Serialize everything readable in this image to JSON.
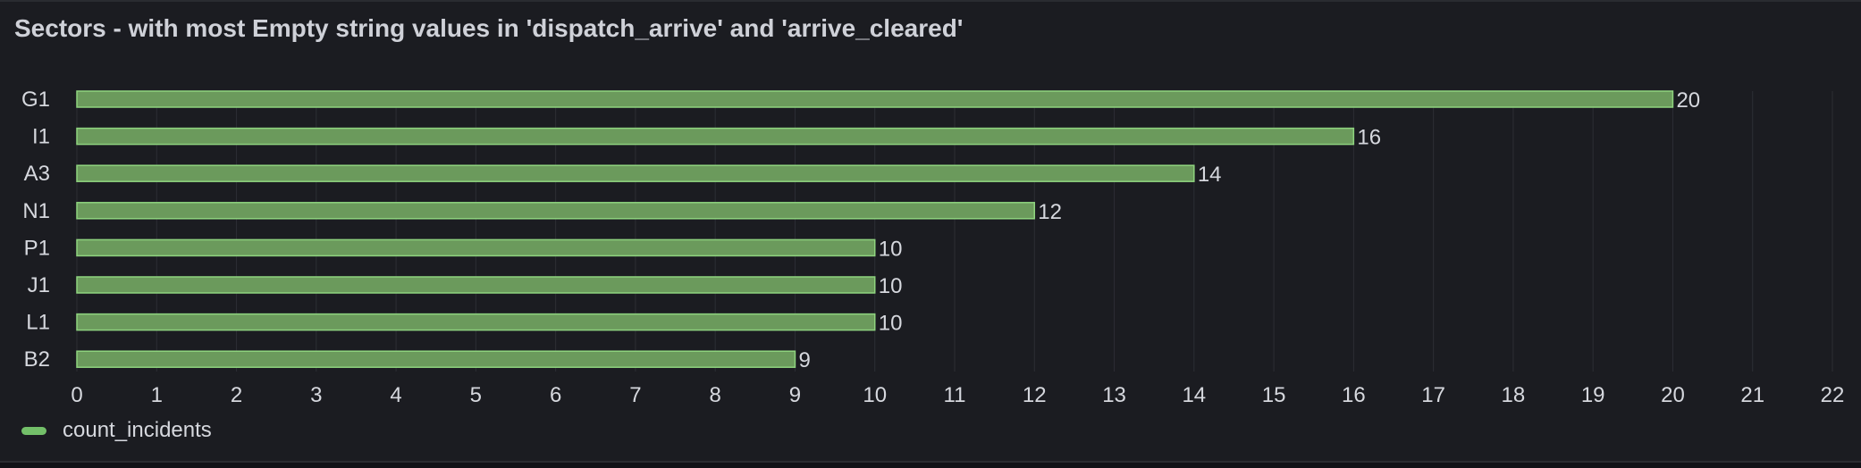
{
  "panel": {
    "title": "Sectors - with most Empty string values in 'dispatch_arrive' and 'arrive_cleared'"
  },
  "legend": {
    "items": [
      {
        "label": "count_incidents",
        "color": "#73bf69"
      }
    ]
  },
  "colors": {
    "background": "#1b1c21",
    "bar_fill": "#6b9a5c",
    "bar_stroke": "#8fd47f",
    "grid": "#2c2e34",
    "text": "#d6d8de"
  },
  "chart_data": {
    "type": "bar",
    "orientation": "horizontal",
    "title": "Sectors - with most Empty string values in 'dispatch_arrive' and 'arrive_cleared'",
    "categories": [
      "G1",
      "I1",
      "A3",
      "N1",
      "P1",
      "J1",
      "L1",
      "B2"
    ],
    "series": [
      {
        "name": "count_incidents",
        "values": [
          20,
          16,
          14,
          12,
          10,
          10,
          10,
          9
        ]
      }
    ],
    "xlim": [
      0,
      22
    ],
    "xticks": [
      0,
      1,
      2,
      3,
      4,
      5,
      6,
      7,
      8,
      9,
      10,
      11,
      12,
      13,
      14,
      15,
      16,
      17,
      18,
      19,
      20,
      21,
      22
    ],
    "grid": true,
    "legend_position": "bottom-left",
    "show_value_labels": true
  }
}
